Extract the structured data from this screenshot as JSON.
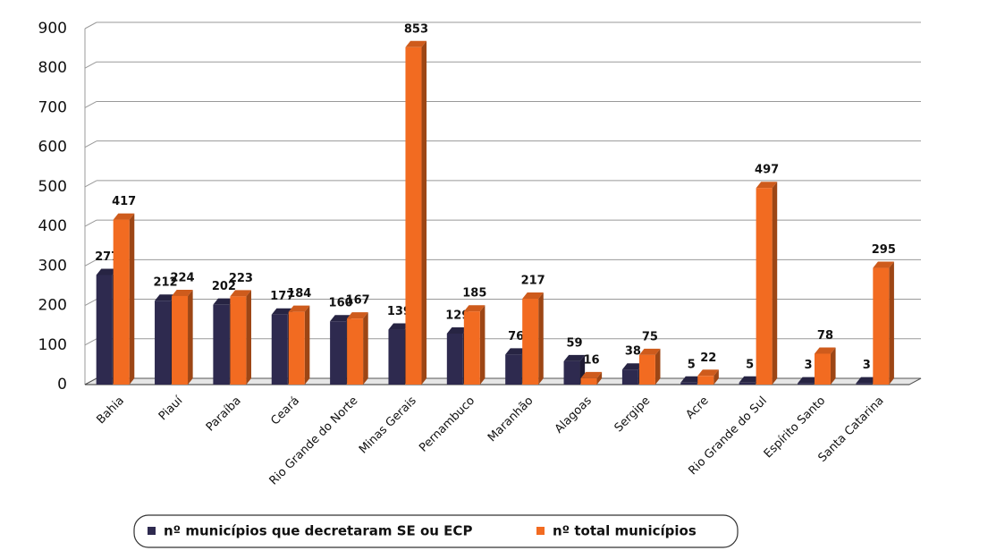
{
  "chart_data": {
    "type": "bar3d",
    "categories": [
      "Bahia",
      "Piauí",
      "Paraíba",
      "Ceará",
      "Rio Grande do Norte",
      "Minas Gerais",
      "Pernambuco",
      "Maranhão",
      "Alagoas",
      "Sergipe",
      "Acre",
      "Rio Grande do Sul",
      "Espírito Santo",
      "Santa Catarina"
    ],
    "series": [
      {
        "name": "nº municípios que decretaram SE ou ECP",
        "color": "#2e2a4f",
        "values": [
          277,
          212,
          202,
          177,
          160,
          139,
          129,
          76,
          59,
          38,
          5,
          5,
          3,
          3
        ]
      },
      {
        "name": "nº total municípios",
        "color": "#f26b21",
        "values": [
          417,
          224,
          223,
          184,
          167,
          853,
          185,
          217,
          16,
          75,
          22,
          497,
          78,
          295
        ]
      }
    ],
    "ylim": [
      0,
      900
    ],
    "yticks": [
      0,
      100,
      200,
      300,
      400,
      500,
      600,
      700,
      800,
      900
    ],
    "grid": true,
    "legend": "bottom"
  }
}
